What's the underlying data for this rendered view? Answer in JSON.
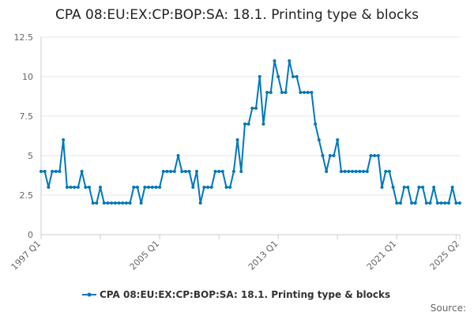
{
  "chart_data": {
    "type": "line",
    "title": "CPA 08:EU:EX:CP:BOP:SA: 18.1. Printing type & blocks",
    "xlabel": "",
    "ylabel": "",
    "ylim": [
      0,
      12.5
    ],
    "y_ticks": [
      "0",
      "2.5",
      "5",
      "7.5",
      "10",
      "12.5"
    ],
    "x_tick_labels": [
      "1997 Q1",
      "2005 Q1",
      "2013 Q1",
      "2021 Q1",
      "2025 Q2"
    ],
    "grid": true,
    "legend_position": "bottom",
    "x": [
      "1997 Q1",
      "1997 Q2",
      "1997 Q3",
      "1997 Q4",
      "1998 Q1",
      "1998 Q2",
      "1998 Q3",
      "1998 Q4",
      "1999 Q1",
      "1999 Q2",
      "1999 Q3",
      "1999 Q4",
      "2000 Q1",
      "2000 Q2",
      "2000 Q3",
      "2000 Q4",
      "2001 Q1",
      "2001 Q2",
      "2001 Q3",
      "2001 Q4",
      "2002 Q1",
      "2002 Q2",
      "2002 Q3",
      "2002 Q4",
      "2003 Q1",
      "2003 Q2",
      "2003 Q3",
      "2003 Q4",
      "2004 Q1",
      "2004 Q2",
      "2004 Q3",
      "2004 Q4",
      "2005 Q1",
      "2005 Q2",
      "2005 Q3",
      "2005 Q4",
      "2006 Q1",
      "2006 Q2",
      "2006 Q3",
      "2006 Q4",
      "2007 Q1",
      "2007 Q2",
      "2007 Q3",
      "2007 Q4",
      "2008 Q1",
      "2008 Q2",
      "2008 Q3",
      "2008 Q4",
      "2009 Q1",
      "2009 Q2",
      "2009 Q3",
      "2009 Q4",
      "2010 Q1",
      "2010 Q2",
      "2010 Q3",
      "2010 Q4",
      "2011 Q1",
      "2011 Q2",
      "2011 Q3",
      "2011 Q4",
      "2012 Q1",
      "2012 Q2",
      "2012 Q3",
      "2012 Q4",
      "2013 Q1",
      "2013 Q2",
      "2013 Q3",
      "2013 Q4",
      "2014 Q1",
      "2014 Q2",
      "2014 Q3",
      "2014 Q4",
      "2015 Q1",
      "2015 Q2",
      "2015 Q3",
      "2015 Q4",
      "2016 Q1",
      "2016 Q2",
      "2016 Q3",
      "2016 Q4",
      "2017 Q1",
      "2017 Q2",
      "2017 Q3",
      "2017 Q4",
      "2018 Q1",
      "2018 Q2",
      "2018 Q3",
      "2018 Q4",
      "2019 Q1",
      "2019 Q2",
      "2019 Q3",
      "2019 Q4",
      "2020 Q1",
      "2020 Q2",
      "2020 Q3",
      "2020 Q4",
      "2021 Q1",
      "2021 Q2",
      "2021 Q3",
      "2021 Q4",
      "2022 Q1",
      "2022 Q2",
      "2022 Q3",
      "2022 Q4",
      "2023 Q1",
      "2023 Q2",
      "2023 Q3",
      "2023 Q4",
      "2024 Q1",
      "2024 Q2",
      "2024 Q3",
      "2024 Q4",
      "2025 Q1",
      "2025 Q2"
    ],
    "series": [
      {
        "name": "CPA 08:EU:EX:CP:BOP:SA: 18.1. Printing type & blocks",
        "color": "#0077bb",
        "values": [
          4,
          4,
          3,
          4,
          4,
          4,
          6,
          3,
          3,
          3,
          3,
          4,
          3,
          3,
          2,
          2,
          3,
          2,
          2,
          2,
          2,
          2,
          2,
          2,
          2,
          3,
          3,
          2,
          3,
          3,
          3,
          3,
          3,
          4,
          4,
          4,
          4,
          5,
          4,
          4,
          4,
          3,
          4,
          2,
          3,
          3,
          3,
          4,
          4,
          4,
          3,
          3,
          4,
          6,
          4,
          7,
          7,
          8,
          8,
          10,
          7,
          9,
          9,
          11,
          10,
          9,
          9,
          11,
          10,
          10,
          9,
          9,
          9,
          9,
          7,
          6,
          5,
          4,
          5,
          5,
          6,
          4,
          4,
          4,
          4,
          4,
          4,
          4,
          4,
          5,
          5,
          5,
          3,
          4,
          4,
          3,
          2,
          2,
          3,
          3,
          2,
          2,
          3,
          3,
          2,
          2,
          3,
          2,
          2,
          2,
          2,
          3,
          2,
          2
        ]
      }
    ]
  },
  "footer": {
    "source_label": "Source:"
  }
}
